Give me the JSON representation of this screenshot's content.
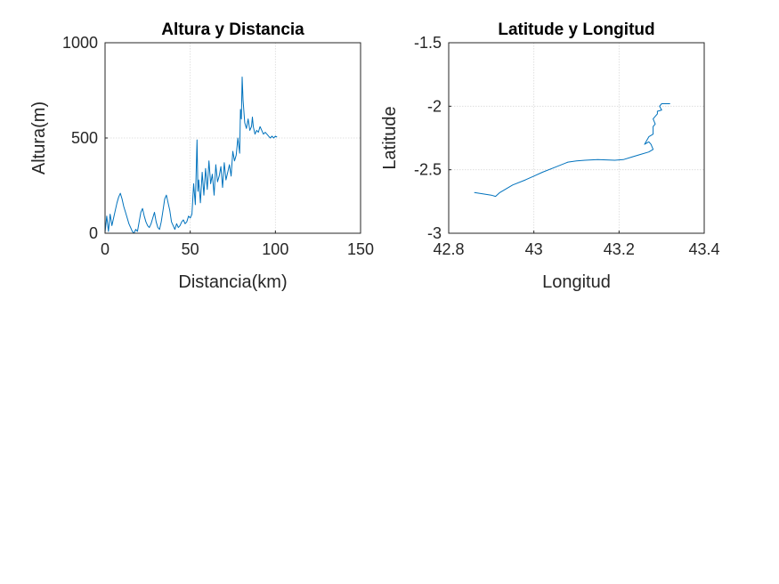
{
  "chart_data": [
    {
      "type": "line",
      "title": "Altura y Distancia",
      "xlabel": "Distancia(km)",
      "ylabel": "Altura(m)",
      "xlim": [
        0,
        150
      ],
      "ylim": [
        0,
        1000
      ],
      "xticks": [
        "0",
        "50",
        "100",
        "150"
      ],
      "yticks": [
        "0",
        "500",
        "1000"
      ],
      "grid": true,
      "line_color": "#0072BD",
      "series": [
        {
          "x": [
            0,
            1,
            2,
            3,
            4,
            5,
            6,
            7,
            8,
            9,
            10,
            11,
            12,
            13,
            14,
            15,
            16,
            17,
            18,
            19,
            20,
            21,
            22,
            23,
            24,
            25,
            26,
            27,
            28,
            29,
            30,
            31,
            32,
            33,
            34,
            35,
            36,
            37,
            38,
            39,
            40,
            41,
            42,
            43,
            44,
            45,
            46,
            47,
            48,
            49,
            50,
            51,
            52,
            53,
            54,
            54.5,
            55,
            56,
            57,
            58,
            59,
            60,
            61,
            62,
            63,
            64,
            65,
            66,
            67,
            68,
            69,
            70,
            71,
            72,
            73,
            74,
            75,
            76,
            77,
            78,
            79,
            79.5,
            80,
            80.5,
            81,
            82,
            83,
            84,
            85,
            86,
            86.5,
            87,
            88,
            89,
            90,
            91,
            92,
            93,
            94,
            95,
            96,
            97,
            98,
            99,
            100,
            101
          ],
          "y": [
            5,
            90,
            10,
            100,
            40,
            80,
            120,
            160,
            190,
            210,
            180,
            140,
            110,
            80,
            50,
            30,
            10,
            0,
            20,
            10,
            60,
            110,
            130,
            90,
            60,
            40,
            30,
            50,
            80,
            110,
            60,
            30,
            20,
            60,
            120,
            180,
            200,
            160,
            120,
            60,
            40,
            20,
            50,
            30,
            40,
            60,
            70,
            50,
            60,
            90,
            80,
            100,
            260,
            150,
            490,
            220,
            280,
            160,
            320,
            200,
            340,
            230,
            380,
            260,
            310,
            200,
            360,
            270,
            300,
            350,
            240,
            370,
            280,
            320,
            360,
            300,
            430,
            380,
            410,
            500,
            420,
            650,
            600,
            820,
            700,
            580,
            550,
            600,
            540,
            560,
            610,
            560,
            520,
            540,
            530,
            560,
            540,
            520,
            530,
            520,
            510,
            500,
            510,
            500,
            510,
            505
          ]
        }
      ]
    },
    {
      "type": "line",
      "title": "Latitude y Longitud",
      "xlabel": "Longitud",
      "ylabel": "Latitude",
      "xlim": [
        42.8,
        43.4
      ],
      "ylim": [
        -3,
        -1.5
      ],
      "xticks": [
        "42.8",
        "43",
        "43.2",
        "43.4"
      ],
      "yticks": [
        "-3",
        "-2.5",
        "-2",
        "-1.5"
      ],
      "grid": true,
      "line_color": "#0072BD",
      "series": [
        {
          "x": [
            42.86,
            42.88,
            42.9,
            42.91,
            42.92,
            42.95,
            42.98,
            43.0,
            43.02,
            43.05,
            43.08,
            43.1,
            43.12,
            43.15,
            43.19,
            43.21,
            43.23,
            43.25,
            43.27,
            43.28,
            43.275,
            43.27,
            43.26,
            43.27,
            43.28,
            43.28,
            43.285,
            43.28,
            43.285,
            43.29,
            43.29,
            43.3,
            43.295,
            43.3,
            43.32
          ],
          "y": [
            -2.68,
            -2.69,
            -2.7,
            -2.71,
            -2.68,
            -2.62,
            -2.58,
            -2.55,
            -2.52,
            -2.48,
            -2.44,
            -2.43,
            -2.425,
            -2.42,
            -2.425,
            -2.42,
            -2.4,
            -2.38,
            -2.36,
            -2.34,
            -2.3,
            -2.28,
            -2.3,
            -2.24,
            -2.22,
            -2.16,
            -2.14,
            -2.1,
            -2.08,
            -2.06,
            -2.04,
            -2.03,
            -2.0,
            -1.98,
            -1.98
          ]
        }
      ]
    }
  ]
}
